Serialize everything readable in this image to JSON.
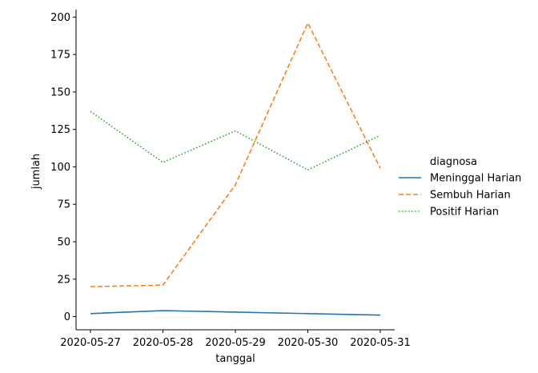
{
  "chart_data": {
    "type": "line",
    "title": "",
    "xlabel": "tanggal",
    "ylabel": "jumlah",
    "categories": [
      "2020-05-27",
      "2020-05-28",
      "2020-05-29",
      "2020-05-30",
      "2020-05-31"
    ],
    "ylim": [
      -8.8,
      205
    ],
    "yticks": [
      0,
      25,
      50,
      75,
      100,
      125,
      150,
      175,
      200
    ],
    "grid": false,
    "legend": {
      "title": "diagnosa",
      "placement": "right"
    },
    "series": [
      {
        "name": "Meninggal Harian",
        "values": [
          2,
          4,
          3,
          2,
          1
        ],
        "color": "#1f77b4",
        "dash": "solid"
      },
      {
        "name": "Sembuh Harian",
        "values": [
          20,
          21,
          88,
          196,
          99
        ],
        "color": "#ff7f0e",
        "dash": "dashed"
      },
      {
        "name": "Positif Harian",
        "values": [
          137,
          103,
          124,
          98,
          121
        ],
        "color": "#2ca02c",
        "dash": "dotted"
      }
    ]
  }
}
